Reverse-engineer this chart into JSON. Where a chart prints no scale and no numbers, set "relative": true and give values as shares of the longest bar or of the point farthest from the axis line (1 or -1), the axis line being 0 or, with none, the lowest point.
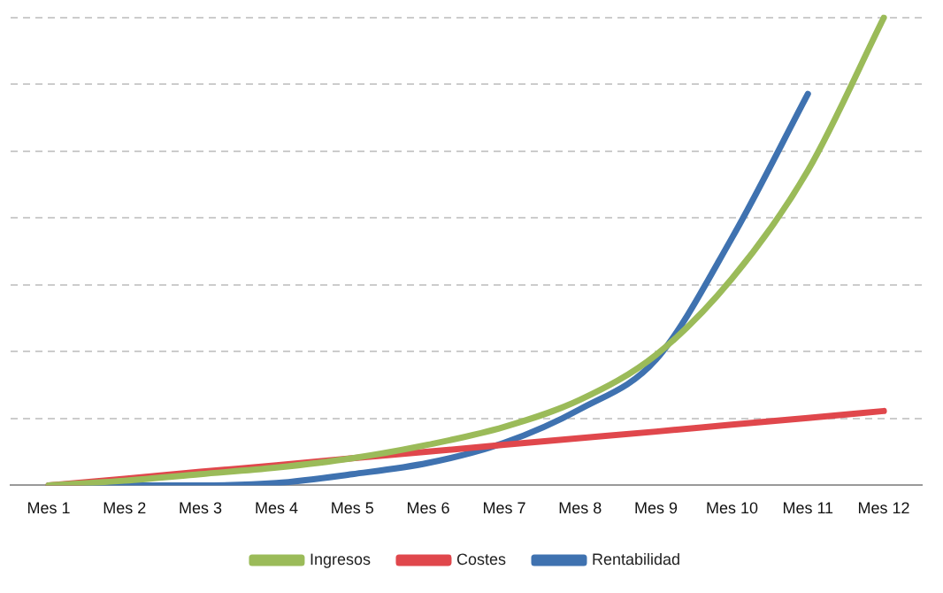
{
  "chart_data": {
    "type": "line",
    "relative": true,
    "categories": [
      "Mes 1",
      "Mes 2",
      "Mes 3",
      "Mes 4",
      "Mes 5",
      "Mes 6",
      "Mes 7",
      "Mes 8",
      "Mes 9",
      "Mes 10",
      "Mes 11",
      "Mes 12"
    ],
    "series": [
      {
        "name": "Ingresos",
        "color": "#9bbb59",
        "values": [
          0,
          0.01,
          0.024,
          0.038,
          0.058,
          0.087,
          0.125,
          0.183,
          0.279,
          0.442,
          0.673,
          1
        ]
      },
      {
        "name": "Costes",
        "color": "#e0474c",
        "values": [
          0,
          0.014,
          0.029,
          0.043,
          0.058,
          0.072,
          0.087,
          0.101,
          0.115,
          0.13,
          0.144,
          0.159
        ]
      },
      {
        "name": "Rentabilidad",
        "color": "#3f72b0",
        "values": [
          0,
          0,
          0,
          0.005,
          0.024,
          0.048,
          0.091,
          0.163,
          0.269,
          0.529,
          0.837,
          null
        ]
      }
    ],
    "grid": "y",
    "legend": "bottom",
    "marker": "none",
    "line_style": "solid"
  }
}
